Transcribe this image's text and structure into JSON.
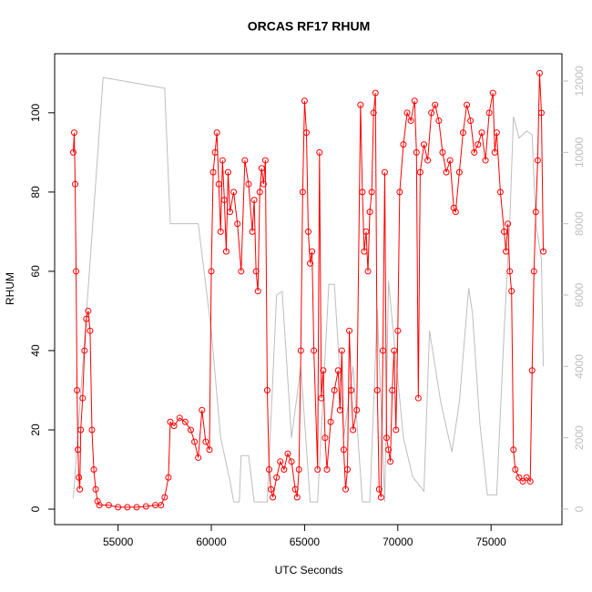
{
  "chart_data": {
    "type": "line",
    "title": "ORCAS RF17 RHUM",
    "x_label": "UTC Seconds",
    "y_label": "RHUM",
    "xlim": [
      51600,
      78800
    ],
    "xticks": [
      55000,
      60000,
      65000,
      70000,
      75000
    ],
    "ylim": [
      -3.9,
      114.9
    ],
    "yticks": [
      0,
      20,
      40,
      60,
      80,
      100
    ],
    "y2lim": [
      -434,
      12766
    ],
    "y2ticks": [
      0,
      2000,
      4000,
      6000,
      8000,
      10000,
      12000
    ],
    "y2_color": "#bebebe",
    "series": [
      {
        "color": "#ff0000",
        "markers": true,
        "x": [
          52600,
          52650,
          52700,
          52750,
          52800,
          52850,
          52900,
          52950,
          53000,
          53100,
          53200,
          53300,
          53400,
          53500,
          53600,
          53700,
          53800,
          53900,
          54000,
          54500,
          55000,
          55500,
          56000,
          56500,
          57000,
          57300,
          57500,
          57700,
          57800,
          58000,
          58300,
          58600,
          58900,
          59100,
          59300,
          59500,
          59700,
          59900,
          60000,
          60100,
          60200,
          60300,
          60400,
          60500,
          60600,
          60700,
          60800,
          60900,
          61000,
          61200,
          61400,
          61600,
          61800,
          62000,
          62200,
          62300,
          62400,
          62500,
          62600,
          62700,
          62800,
          62900,
          63000,
          63100,
          63200,
          63300,
          63500,
          63700,
          63900,
          64100,
          64300,
          64500,
          64600,
          64700,
          64800,
          64900,
          65000,
          65100,
          65200,
          65300,
          65400,
          65500,
          65700,
          65800,
          65900,
          66000,
          66100,
          66200,
          66400,
          66600,
          66800,
          66900,
          67000,
          67100,
          67200,
          67300,
          67400,
          67500,
          67600,
          67800,
          68000,
          68100,
          68200,
          68300,
          68400,
          68500,
          68600,
          68700,
          68800,
          68900,
          69000,
          69100,
          69200,
          69300,
          69400,
          69500,
          69600,
          69700,
          69800,
          69900,
          70000,
          70100,
          70300,
          70500,
          70700,
          70900,
          71000,
          71100,
          71200,
          71400,
          71600,
          71800,
          72000,
          72200,
          72400,
          72600,
          72800,
          73000,
          73100,
          73300,
          73500,
          73700,
          73900,
          74100,
          74300,
          74500,
          74700,
          74900,
          75100,
          75200,
          75300,
          75500,
          75700,
          75800,
          75900,
          76000,
          76100,
          76200,
          76300,
          76500,
          76700,
          76900,
          77100,
          77200,
          77300,
          77400,
          77500,
          77600,
          77700,
          77800
        ],
        "values": [
          90,
          95,
          82,
          60,
          30,
          15,
          8,
          5,
          20,
          28,
          40,
          48,
          50,
          45,
          20,
          10,
          5,
          2,
          1,
          1,
          0.5,
          0.5,
          0.5,
          0.7,
          1,
          1,
          3,
          8,
          22,
          21,
          23,
          22,
          20,
          17,
          13,
          25,
          17,
          15,
          60,
          85,
          90,
          95,
          82,
          70,
          88,
          78,
          65,
          85,
          75,
          80,
          72,
          60,
          88,
          82,
          70,
          78,
          60,
          55,
          80,
          86,
          82,
          88,
          30,
          10,
          5,
          3,
          8,
          12,
          10,
          14,
          12,
          5,
          3,
          10,
          40,
          80,
          103,
          95,
          70,
          62,
          65,
          40,
          10,
          90,
          28,
          35,
          18,
          10,
          22,
          30,
          35,
          25,
          40,
          15,
          5,
          10,
          45,
          30,
          20,
          25,
          102,
          80,
          65,
          70,
          60,
          75,
          80,
          100,
          105,
          30,
          5,
          3,
          40,
          85,
          18,
          15,
          12,
          30,
          40,
          20,
          45,
          80,
          92,
          100,
          98,
          103,
          90,
          28,
          85,
          92,
          88,
          100,
          102,
          98,
          90,
          85,
          88,
          76,
          75,
          85,
          95,
          102,
          98,
          90,
          92,
          95,
          88,
          100,
          105,
          90,
          95,
          80,
          70,
          65,
          72,
          60,
          55,
          15,
          10,
          8,
          7,
          8,
          7,
          35,
          60,
          75,
          88,
          110,
          100,
          65
        ]
      },
      {
        "color": "#bebebe",
        "axis": "y2",
        "x": [
          52600,
          54200,
          57500,
          57800,
          59300,
          60000,
          60500,
          61000,
          61200,
          61500,
          61600,
          62000,
          62300,
          63000,
          63500,
          63800,
          64300,
          64800,
          65300,
          65700,
          66300,
          66600,
          67100,
          67600,
          68100,
          68500,
          68900,
          69300,
          69500,
          69900,
          70300,
          70800,
          71100,
          71400,
          71700,
          72300,
          72900,
          73300,
          73800,
          74000,
          74400,
          74800,
          75300,
          75700,
          76000,
          76200,
          76500,
          76900,
          77200,
          77400,
          77700,
          77800
        ],
        "values": [
          300,
          12100,
          11800,
          8000,
          8000,
          5000,
          2000,
          800,
          200,
          200,
          1500,
          1500,
          200,
          200,
          6000,
          6100,
          2000,
          4000,
          200,
          200,
          6300,
          6300,
          2000,
          4000,
          200,
          200,
          5600,
          200,
          6400,
          4200,
          2000,
          900,
          700,
          500,
          5000,
          3000,
          1600,
          3000,
          6200,
          5500,
          2400,
          400,
          400,
          5000,
          8000,
          11000,
          10400,
          10600,
          10500,
          8000,
          7000,
          4000
        ]
      }
    ]
  }
}
